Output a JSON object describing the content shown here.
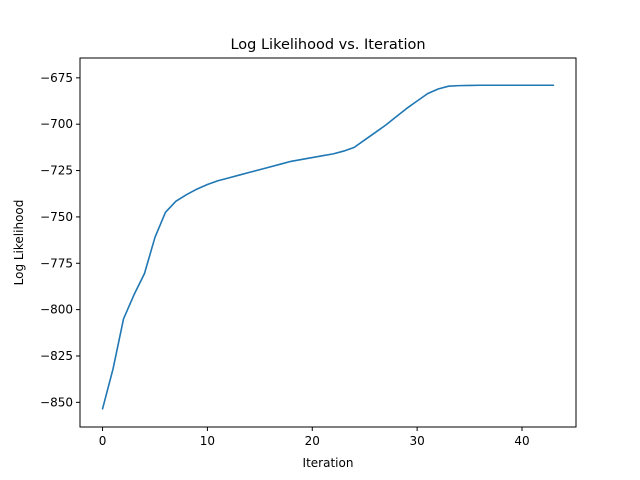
{
  "chart_data": {
    "type": "line",
    "title": "Log Likelihood vs. Iteration",
    "xlabel": "Iteration",
    "ylabel": "Log Likelihood",
    "xlim": [
      -2.15,
      45.15
    ],
    "ylim": [
      -863.3,
      -664.3
    ],
    "grid": false,
    "x_ticks": [
      0,
      10,
      20,
      30,
      40
    ],
    "y_ticks": [
      -850,
      -825,
      -800,
      -775,
      -750,
      -725,
      -700,
      -675
    ],
    "colors": {
      "line": "#1f77b4",
      "axes": "#000000",
      "background": "#ffffff"
    },
    "series": [
      {
        "x": [
          0,
          1,
          2,
          3,
          4,
          5,
          6,
          7,
          8,
          9,
          10,
          11,
          12,
          13,
          14,
          15,
          16,
          17,
          18,
          19,
          20,
          21,
          22,
          23,
          24,
          25,
          26,
          27,
          28,
          29,
          30,
          31,
          32,
          33,
          34,
          35,
          36,
          37,
          38,
          39,
          40,
          41,
          42,
          43
        ],
        "values": [
          -853.5,
          -832,
          -805,
          -792,
          -780.5,
          -761,
          -747.5,
          -741.5,
          -738,
          -735,
          -732.5,
          -730.5,
          -729,
          -727.5,
          -726,
          -724.5,
          -723,
          -721.5,
          -720,
          -719,
          -718,
          -717,
          -716,
          -714.5,
          -712.5,
          -708.5,
          -704.5,
          -700.5,
          -696,
          -691.5,
          -687.5,
          -683.5,
          -681,
          -679.5,
          -679.2,
          -679.1,
          -679,
          -679,
          -679,
          -679,
          -679,
          -679,
          -679,
          -679
        ]
      }
    ]
  }
}
